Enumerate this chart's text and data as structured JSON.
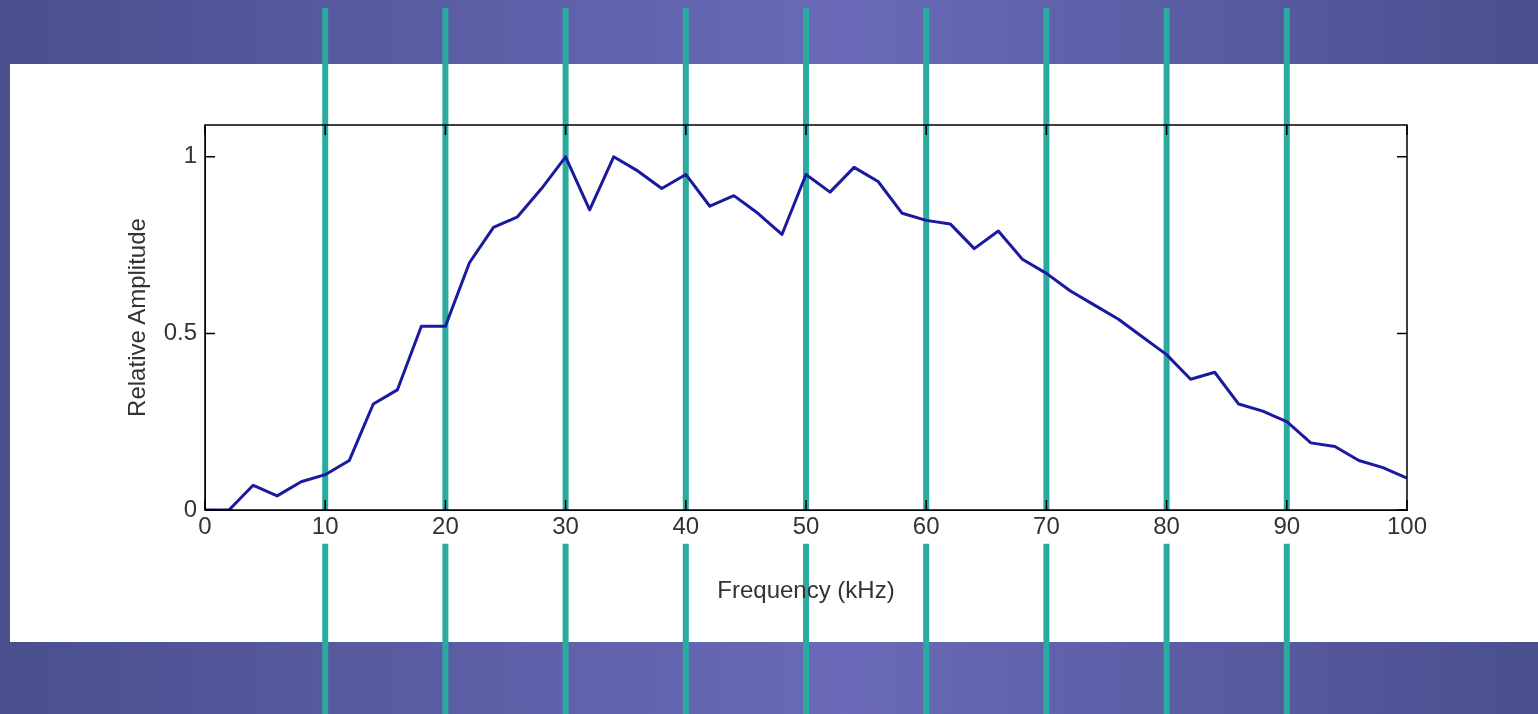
{
  "chart_data": {
    "type": "line",
    "xlabel": "Frequency (kHz)",
    "ylabel": "Relative Amplitude",
    "x": [
      0,
      2,
      4,
      6,
      8,
      10,
      12,
      14,
      16,
      18,
      20,
      22,
      24,
      26,
      28,
      30,
      32,
      34,
      36,
      38,
      40,
      42,
      44,
      46,
      48,
      50,
      52,
      54,
      56,
      58,
      60,
      62,
      64,
      66,
      68,
      70,
      72,
      74,
      76,
      78,
      80,
      82,
      84,
      86,
      88,
      90,
      92,
      94,
      96,
      98,
      100
    ],
    "series": [
      {
        "color": "#1a1aa0",
        "values": [
          0,
          0,
          0.07,
          0.04,
          0.08,
          0.1,
          0.14,
          0.3,
          0.34,
          0.52,
          0.52,
          0.7,
          0.8,
          0.83,
          0.91,
          1.0,
          0.85,
          1.0,
          0.96,
          0.91,
          0.95,
          0.86,
          0.89,
          0.84,
          0.78,
          0.95,
          0.9,
          0.97,
          0.93,
          0.84,
          0.82,
          0.81,
          0.74,
          0.79,
          0.71,
          0.67,
          0.62,
          0.58,
          0.54,
          0.49,
          0.44,
          0.37,
          0.39,
          0.3,
          0.28,
          0.25,
          0.19,
          0.18,
          0.14,
          0.12,
          0.09
        ]
      }
    ],
    "xlim": [
      0,
      100
    ],
    "xticks": [
      0,
      10,
      20,
      30,
      40,
      50,
      60,
      70,
      80,
      90,
      100
    ],
    "ylim": [
      0,
      1.09
    ],
    "yticks": [
      0,
      0.5,
      1
    ],
    "grid": false,
    "legend": false,
    "marker": "none",
    "line_style": "solid",
    "ref_lines": [
      {
        "axis": "x",
        "value": 10,
        "color": "#2aab9f"
      },
      {
        "axis": "x",
        "value": 20,
        "color": "#2aab9f"
      },
      {
        "axis": "x",
        "value": 30,
        "color": "#2aab9f"
      },
      {
        "axis": "x",
        "value": 40,
        "color": "#2aab9f"
      },
      {
        "axis": "x",
        "value": 50,
        "color": "#2aab9f"
      },
      {
        "axis": "x",
        "value": 60,
        "color": "#2aab9f"
      },
      {
        "axis": "x",
        "value": 70,
        "color": "#2aab9f"
      },
      {
        "axis": "x",
        "value": 80,
        "color": "#2aab9f"
      },
      {
        "axis": "x",
        "value": 90,
        "color": "#2aab9f"
      }
    ]
  }
}
